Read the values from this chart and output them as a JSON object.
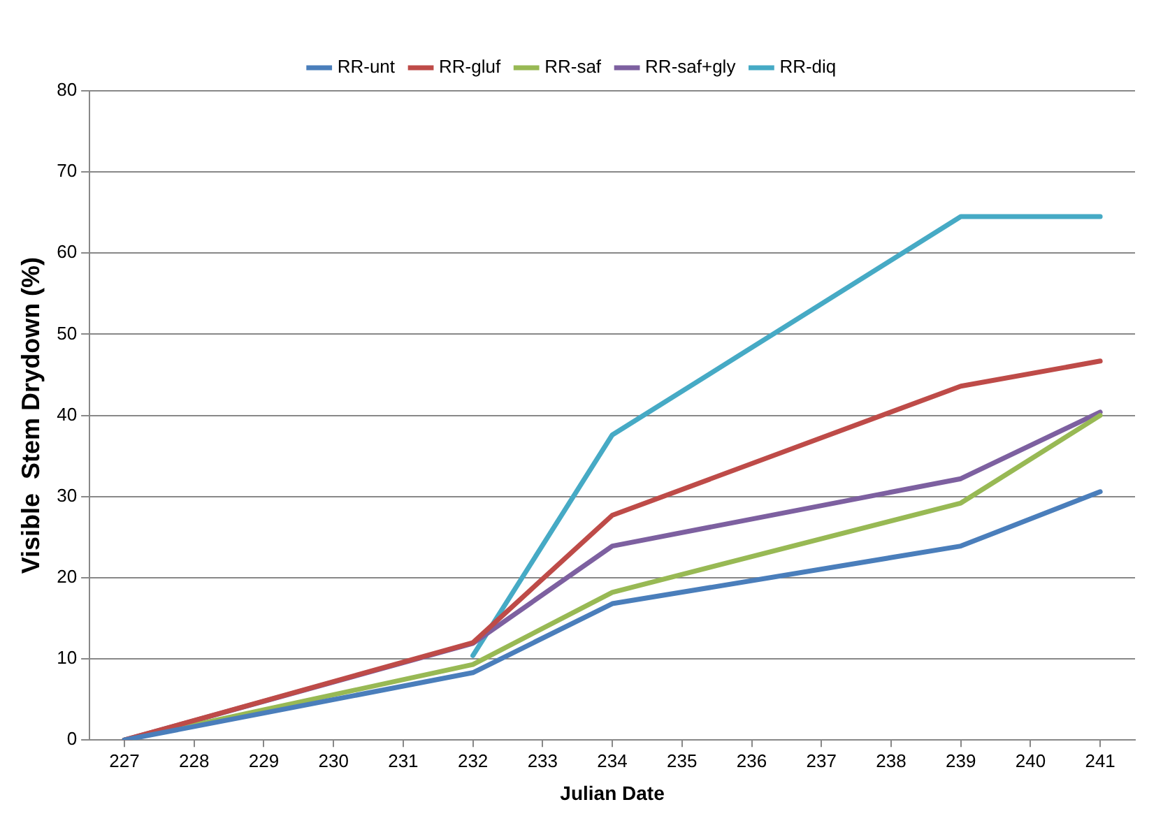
{
  "chart_data": {
    "type": "line",
    "xlabel": "Julian Date",
    "ylabel": "Visible  Stem Drydown (%)",
    "x": [
      227,
      232,
      234,
      239,
      241
    ],
    "series": [
      {
        "name": "RR-unt",
        "color": "#4a7ebb",
        "values": [
          0,
          8.3,
          16.8,
          23.9,
          30.6
        ]
      },
      {
        "name": "RR-gluf",
        "color": "#be4b48",
        "values": [
          0,
          12,
          27.7,
          43.6,
          46.7
        ]
      },
      {
        "name": "RR-saf",
        "color": "#98b954",
        "values": [
          0,
          9.3,
          18.2,
          29.2,
          40
        ]
      },
      {
        "name": "RR-saf+gly",
        "color": "#7d60a0",
        "values": [
          0,
          11.9,
          23.9,
          32.2,
          40.4
        ]
      },
      {
        "name": "RR-diq",
        "color": "#46aac5",
        "values": [
          null,
          10.4,
          37.6,
          64.5,
          64.5
        ]
      }
    ],
    "xlim": [
      226.5,
      241.5
    ],
    "xticks": [
      227,
      228,
      229,
      230,
      231,
      232,
      233,
      234,
      235,
      236,
      237,
      238,
      239,
      240,
      241
    ],
    "ylim": [
      0,
      80
    ],
    "yticks": [
      0,
      10,
      20,
      30,
      40,
      50,
      60,
      70,
      80
    ],
    "grid": "y",
    "legend": "top",
    "marker": "none",
    "line_style": "solid"
  }
}
